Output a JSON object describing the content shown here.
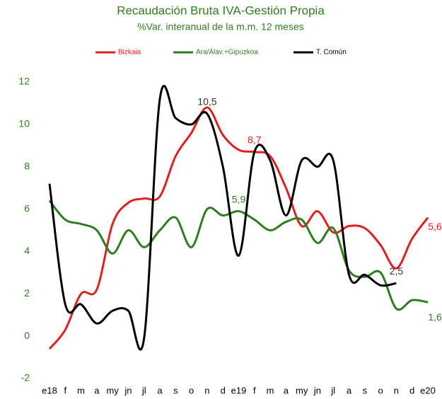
{
  "chart_data": {
    "type": "line",
    "title": "Recaudación Bruta IVA-Gestión Propia",
    "subtitle": "%Var. interanual de la m.m. 12 meses",
    "categories": [
      "e18",
      "f",
      "m",
      "a",
      "my",
      "jn",
      "jl",
      "a",
      "s",
      "o",
      "n",
      "d",
      "e19",
      "f",
      "m",
      "a",
      "my",
      "jn",
      "jl",
      "a",
      "s",
      "o",
      "n",
      "d",
      "e20"
    ],
    "series": [
      {
        "name": "Bizkaia",
        "color": "#e02020",
        "values": [
          -0.6,
          0.3,
          2.0,
          2.2,
          5.3,
          6.3,
          6.5,
          6.6,
          8.5,
          9.6,
          10.8,
          9.5,
          8.8,
          8.7,
          8.5,
          7.0,
          5.2,
          5.9,
          4.9,
          5.2,
          5.1,
          4.3,
          3.2,
          4.6,
          5.6
        ],
        "value_labels": [
          null,
          null,
          null,
          null,
          null,
          null,
          null,
          null,
          null,
          null,
          null,
          null,
          null,
          "8,7",
          null,
          null,
          null,
          null,
          null,
          null,
          null,
          null,
          null,
          null,
          "5,6"
        ]
      },
      {
        "name": "Ara/Álav.+Gipuzkoa",
        "color": "#2e7d1e",
        "values": [
          6.4,
          5.5,
          5.3,
          5.0,
          3.9,
          5.0,
          4.2,
          5.0,
          5.6,
          4.2,
          6.0,
          5.7,
          5.9,
          5.5,
          5.0,
          5.4,
          5.5,
          4.4,
          5.1,
          3.1,
          2.8,
          3.0,
          1.3,
          1.7,
          1.6
        ],
        "value_labels": [
          null,
          null,
          null,
          null,
          null,
          null,
          null,
          null,
          null,
          null,
          null,
          null,
          "5,9",
          null,
          null,
          null,
          null,
          null,
          null,
          null,
          null,
          null,
          null,
          null,
          "1,6"
        ]
      },
      {
        "name": "T. Común",
        "color": "#000000",
        "values": [
          7.2,
          1.5,
          1.5,
          0.6,
          1.2,
          1.2,
          -0.1,
          11.2,
          10.3,
          10.0,
          10.5,
          8.0,
          3.8,
          8.7,
          8.3,
          5.7,
          8.3,
          8.0,
          8.3,
          2.9,
          2.9,
          2.4,
          2.5,
          null,
          null
        ],
        "value_labels": [
          null,
          null,
          null,
          null,
          null,
          null,
          null,
          null,
          null,
          null,
          "10,5",
          null,
          null,
          null,
          null,
          null,
          null,
          null,
          null,
          null,
          null,
          null,
          "2,5",
          null,
          null
        ]
      }
    ],
    "ylim": [
      -2,
      12
    ],
    "yticks": [
      -2,
      0,
      2,
      4,
      6,
      8,
      10,
      12
    ]
  }
}
